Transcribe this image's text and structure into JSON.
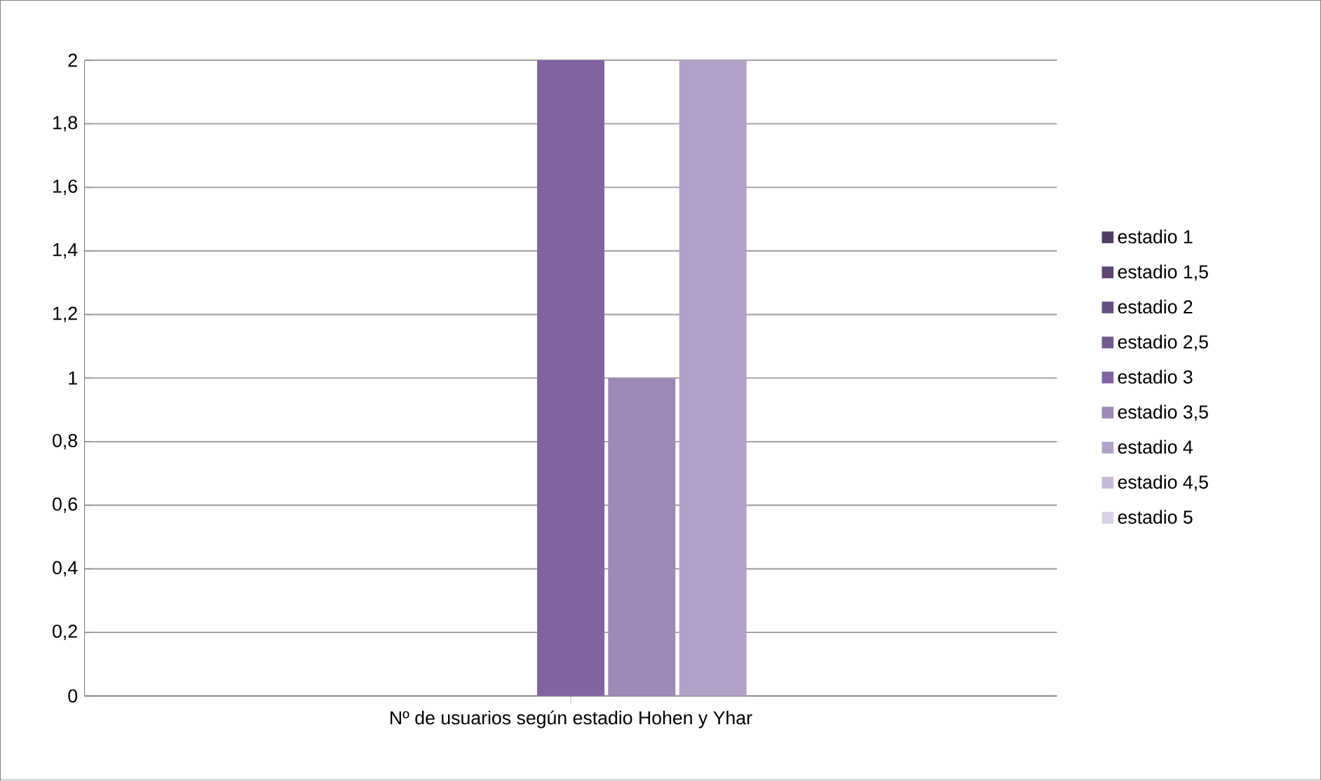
{
  "chart_data": {
    "type": "bar",
    "categories": [
      "Nº de usuarios según estadio  Hohen y Yhar"
    ],
    "series": [
      {
        "name": "estadio 1",
        "color": "#4f3d66",
        "values": [
          0
        ]
      },
      {
        "name": "estadio 1,5",
        "color": "#5a4574",
        "values": [
          0
        ]
      },
      {
        "name": "estadio 2",
        "color": "#654e82",
        "values": [
          0
        ]
      },
      {
        "name": "estadio 2,5",
        "color": "#72598f",
        "values": [
          0
        ]
      },
      {
        "name": "estadio 3",
        "color": "#8064a2",
        "values": [
          2
        ]
      },
      {
        "name": "estadio 3,5",
        "color": "#9c89b5",
        "values": [
          1
        ]
      },
      {
        "name": "estadio 4",
        "color": "#b1a3c7",
        "values": [
          2
        ]
      },
      {
        "name": "estadio 4,5",
        "color": "#c5bbd6",
        "values": [
          0
        ]
      },
      {
        "name": "estadio 5",
        "color": "#d8d2e4",
        "values": [
          0
        ]
      }
    ],
    "ylim": [
      0,
      2
    ],
    "yticks": [
      0,
      {
        "value": 0.2,
        "label": "0,2"
      },
      {
        "value": 0.4,
        "label": "0,4"
      },
      {
        "value": 0.6,
        "label": "0,6"
      },
      {
        "value": 0.8,
        "label": "0,8"
      },
      1,
      {
        "value": 1.2,
        "label": "1,2"
      },
      {
        "value": 1.4,
        "label": "1,4"
      },
      {
        "value": 1.6,
        "label": "1,6"
      },
      {
        "value": 1.8,
        "label": "1,8"
      },
      2
    ],
    "grid": "y",
    "legend": "right"
  }
}
